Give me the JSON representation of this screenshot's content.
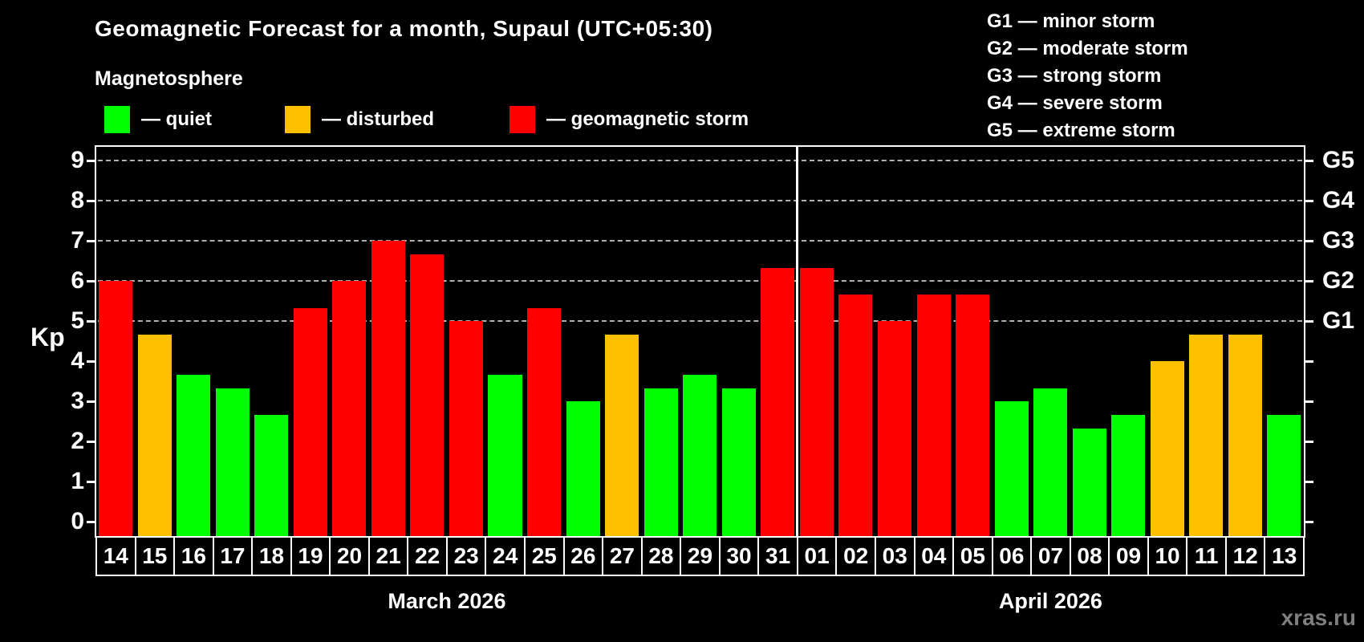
{
  "title": "Geomagnetic Forecast for a month, Supaul (UTC+05:30)",
  "subtitle": "Magnetosphere",
  "axis": {
    "y_label": "Kp"
  },
  "status_legend": [
    {
      "key": "quiet",
      "label": "— quiet",
      "color": "#00ff00"
    },
    {
      "key": "disturbed",
      "label": "— disturbed",
      "color": "#ffc000"
    },
    {
      "key": "storm",
      "label": "— geomagnetic storm",
      "color": "#ff0000"
    }
  ],
  "g_legend": [
    "G1 — minor storm",
    "G2 — moderate storm",
    "G3 — strong storm",
    "G4 — severe storm",
    "G5 — extreme storm"
  ],
  "watermark": "xras.ru",
  "chart_data": {
    "type": "bar",
    "title": "Geomagnetic Forecast for a month, Supaul (UTC+05:30)",
    "ylabel": "Kp",
    "ylim": [
      0,
      9
    ],
    "yticks": [
      0,
      1,
      2,
      3,
      4,
      5,
      6,
      7,
      8,
      9
    ],
    "gridline_levels": [
      5,
      6,
      7,
      8,
      9
    ],
    "grid": "dashed horizontal at Kp 5-9",
    "legend_position": "top",
    "right_axis": [
      {
        "label": "G1",
        "kp": 5
      },
      {
        "label": "G2",
        "kp": 6
      },
      {
        "label": "G3",
        "kp": 7
      },
      {
        "label": "G4",
        "kp": 8
      },
      {
        "label": "G5",
        "kp": 9
      }
    ],
    "colors": {
      "quiet": "#00ff00",
      "disturbed": "#ffc000",
      "storm": "#ff0000"
    },
    "months": [
      {
        "label": "March 2026",
        "days": 18
      },
      {
        "label": "April 2026",
        "days": 13
      }
    ],
    "categories": [
      "14",
      "15",
      "16",
      "17",
      "18",
      "19",
      "20",
      "21",
      "22",
      "23",
      "24",
      "25",
      "26",
      "27",
      "28",
      "29",
      "30",
      "31",
      "01",
      "02",
      "03",
      "04",
      "05",
      "06",
      "07",
      "08",
      "09",
      "10",
      "11",
      "12",
      "13"
    ],
    "values": [
      6.0,
      4.67,
      3.67,
      3.33,
      2.67,
      5.33,
      6.0,
      7.0,
      6.67,
      5.0,
      3.67,
      5.33,
      3.0,
      4.67,
      3.33,
      3.67,
      3.33,
      6.33,
      6.33,
      5.67,
      5.0,
      5.67,
      5.67,
      3.0,
      3.33,
      2.33,
      2.67,
      4.0,
      4.67,
      4.67,
      2.67
    ],
    "statuses": [
      "storm",
      "disturbed",
      "quiet",
      "quiet",
      "quiet",
      "storm",
      "storm",
      "storm",
      "storm",
      "storm",
      "quiet",
      "storm",
      "quiet",
      "disturbed",
      "quiet",
      "quiet",
      "quiet",
      "storm",
      "storm",
      "storm",
      "storm",
      "storm",
      "storm",
      "quiet",
      "quiet",
      "quiet",
      "quiet",
      "disturbed",
      "disturbed",
      "disturbed",
      "quiet"
    ]
  }
}
